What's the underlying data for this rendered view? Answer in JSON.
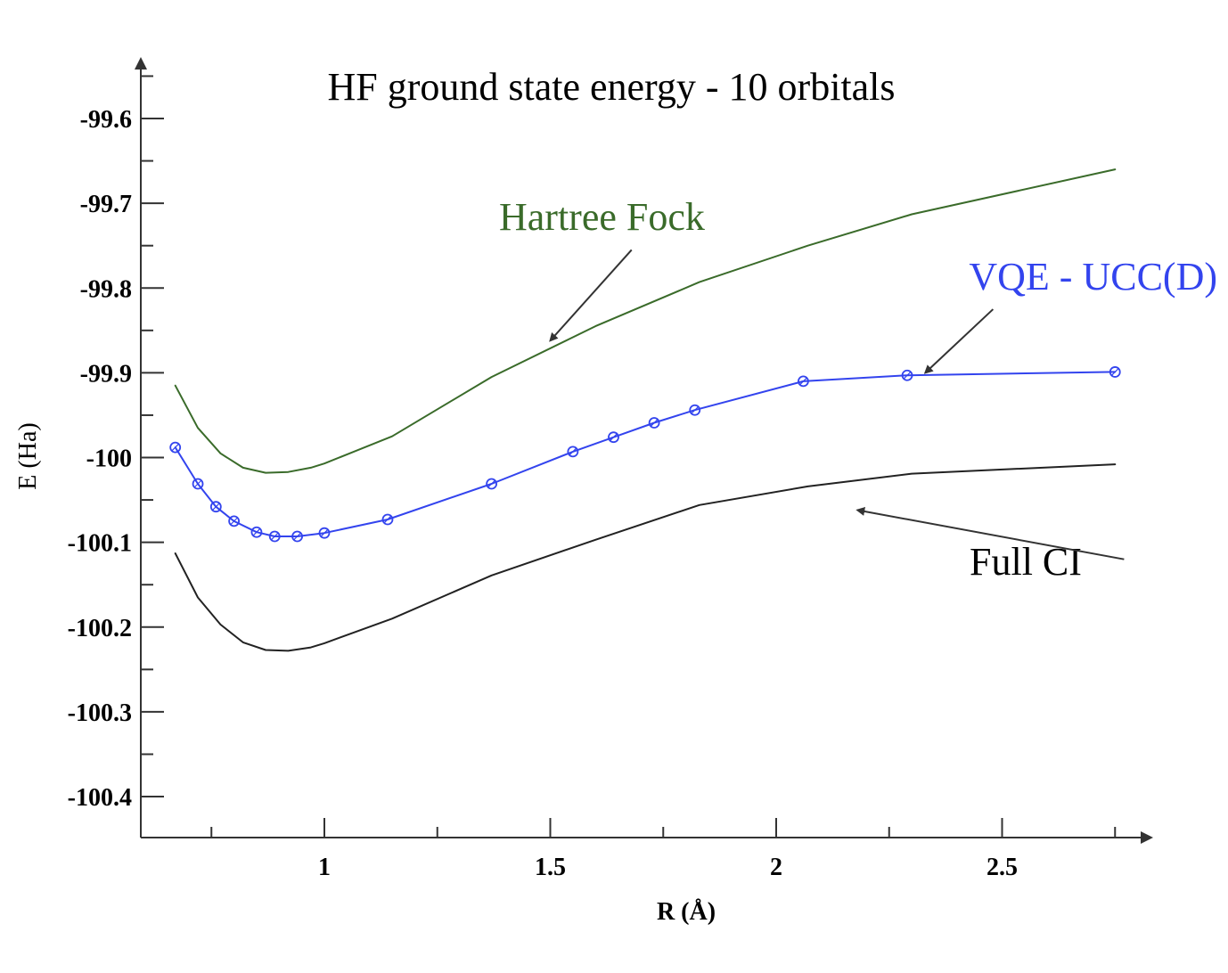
{
  "chart_data": {
    "type": "line",
    "title": "HF ground state energy - 10 orbitals",
    "xlabel": "R (Å)",
    "ylabel": "E (Ha)",
    "xlim": [
      0.58,
      2.78
    ],
    "ylim": [
      -100.45,
      -99.53
    ],
    "x_ticks": [
      1,
      1.5,
      2,
      2.5
    ],
    "x_tick_labels": [
      "1",
      "1.5",
      "2",
      "2.5"
    ],
    "y_ticks": [
      -99.6,
      -99.7,
      -99.8,
      -99.9,
      -100,
      -100.1,
      -100.2,
      -100.3,
      -100.4
    ],
    "y_tick_labels": [
      "-99.6",
      "-99.7",
      "-99.8",
      "-99.9",
      "-100",
      "-100.1",
      "-100.2",
      "-100.3",
      "-100.4"
    ],
    "grid": false,
    "legend": "none",
    "series": [
      {
        "name": "Hartree Fock",
        "color": "#3a6b2a",
        "marker": "none",
        "x": [
          0.67,
          0.72,
          0.77,
          0.82,
          0.87,
          0.92,
          0.97,
          1.0,
          1.15,
          1.37,
          1.6,
          1.83,
          2.07,
          2.3,
          2.75
        ],
        "y": [
          -99.915,
          -99.965,
          -99.995,
          -100.012,
          -100.018,
          -100.017,
          -100.012,
          -100.007,
          -99.975,
          -99.905,
          -99.845,
          -99.793,
          -99.75,
          -99.713,
          -99.66
        ]
      },
      {
        "name": "VQE - UCC(D)",
        "color": "#3344ee",
        "marker": "circle",
        "x": [
          0.67,
          0.72,
          0.76,
          0.8,
          0.85,
          0.89,
          0.94,
          1.0,
          1.14,
          1.37,
          1.55,
          1.64,
          1.73,
          1.82,
          2.06,
          2.29,
          2.75
        ],
        "y": [
          -99.988,
          -100.031,
          -100.058,
          -100.075,
          -100.088,
          -100.093,
          -100.093,
          -100.089,
          -100.073,
          -100.031,
          -99.993,
          -99.976,
          -99.959,
          -99.944,
          -99.91,
          -99.903,
          -99.899
        ]
      },
      {
        "name": "Full CI",
        "color": "#222222",
        "marker": "none",
        "x": [
          0.67,
          0.72,
          0.77,
          0.82,
          0.87,
          0.92,
          0.97,
          1.0,
          1.15,
          1.37,
          1.6,
          1.83,
          2.07,
          2.3,
          2.75
        ],
        "y": [
          -100.113,
          -100.165,
          -100.197,
          -100.218,
          -100.227,
          -100.228,
          -100.224,
          -100.219,
          -100.19,
          -100.139,
          -100.097,
          -100.056,
          -100.034,
          -100.019,
          -100.008
        ]
      }
    ],
    "annotations": [
      {
        "text": "Hartree Fock",
        "color": "#3a6b2a",
        "arrow_from": [
          1.68,
          -99.755
        ],
        "arrow_to": [
          1.5,
          -99.862
        ]
      },
      {
        "text": "VQE - UCC(D)",
        "color": "#3344ee",
        "arrow_from": [
          2.48,
          -99.825
        ],
        "arrow_to": [
          2.33,
          -99.9
        ]
      },
      {
        "text": "Full CI",
        "color": "#000000",
        "arrow_from": [
          2.77,
          -100.12
        ],
        "arrow_to": [
          2.18,
          -100.062
        ]
      }
    ]
  }
}
